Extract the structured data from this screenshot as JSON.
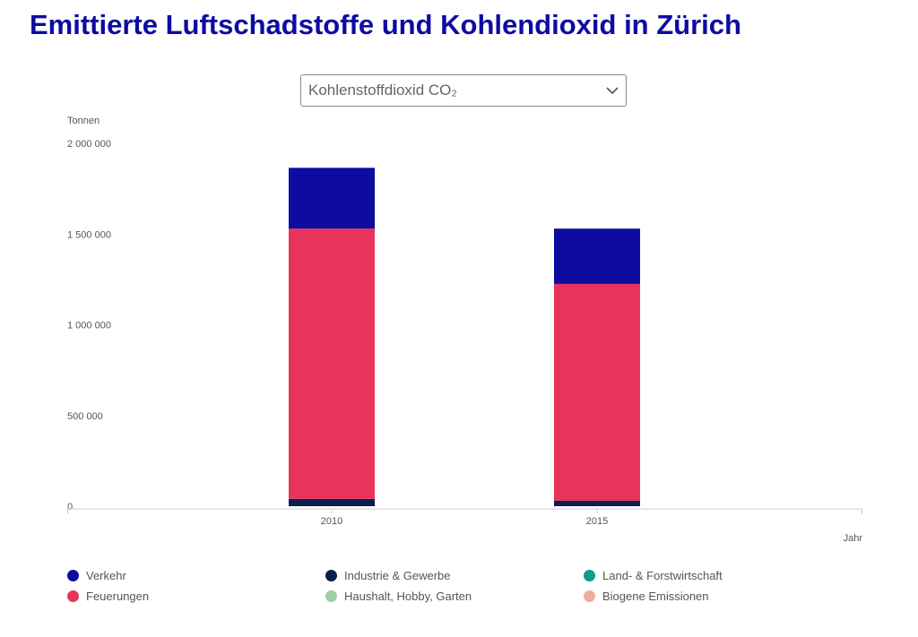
{
  "title": "Emittierte Luftschadstoffe und Kohlendioxid in Zürich",
  "selector": {
    "selected": "Kohlenstoffdioxid CO₂",
    "icon": "chevron-down-icon"
  },
  "chart_data": {
    "type": "bar",
    "stacked": true,
    "categories": [
      "2010",
      "2015"
    ],
    "ylabel": "Tonnen",
    "xlabel": "Jahr",
    "ylim": [
      0,
      2000000
    ],
    "yticks": [
      "0",
      "500 000",
      "1 000 000",
      "1 500 000",
      "2 000 000"
    ],
    "ytick_values": [
      0,
      500000,
      1000000,
      1500000,
      2000000
    ],
    "grid": false,
    "legend_position": "bottom",
    "series": [
      {
        "name": "Industrie & Gewerbe",
        "color": "#0b1f4f",
        "values": [
          40000,
          30000
        ]
      },
      {
        "name": "Feuerungen",
        "color": "#e8335a",
        "values": [
          1490000,
          1195000
        ]
      },
      {
        "name": "Verkehr",
        "color": "#0d0ba0",
        "values": [
          335000,
          305000
        ]
      },
      {
        "name": "Land- & Forstwirtschaft",
        "color": "#0f9a8f",
        "values": [
          0,
          0
        ]
      },
      {
        "name": "Haushalt, Hobby, Garten",
        "color": "#9ccfa8",
        "values": [
          0,
          0
        ]
      },
      {
        "name": "Biogene Emissionen",
        "color": "#f0ad9c",
        "values": [
          0,
          0
        ]
      }
    ],
    "legend_order": [
      "Verkehr",
      "Industrie & Gewerbe",
      "Land- & Forstwirtschaft",
      "Feuerungen",
      "Haushalt, Hobby, Garten",
      "Biogene Emissionen"
    ]
  }
}
